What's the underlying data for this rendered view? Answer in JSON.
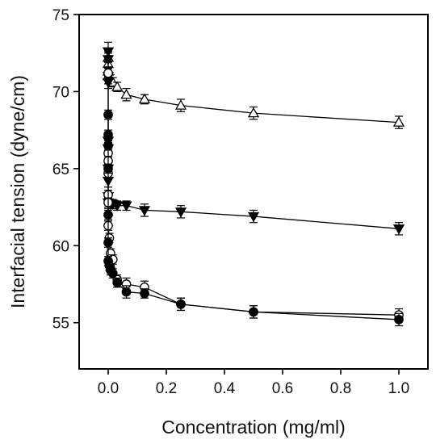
{
  "chart_data": {
    "type": "scatter",
    "title": "",
    "xlabel": "Concentration (mg/ml)",
    "ylabel": "Interfacial tension (dyne/cm)",
    "xlim": [
      -0.1,
      1.1
    ],
    "ylim": [
      52,
      75
    ],
    "x_ticks": [
      0.0,
      0.2,
      0.4,
      0.6,
      0.8,
      1.0
    ],
    "x_tick_labels": [
      "0.0",
      "0.2",
      "0.4",
      "0.6",
      "0.8",
      "1.0"
    ],
    "y_ticks": [
      55,
      60,
      65,
      70,
      75
    ],
    "y_tick_labels": [
      "55",
      "60",
      "65",
      "70",
      "75"
    ],
    "grid": false,
    "legend": "none",
    "series": [
      {
        "marker": "triangle-up-open",
        "color": "#000000",
        "x": [
          0.0,
          0.0,
          0.0,
          0.0,
          0.008,
          0.016,
          0.031,
          0.0625,
          0.125,
          0.25,
          0.5,
          1.0
        ],
        "y": [
          72.2,
          71.8,
          71.3,
          71.0,
          70.8,
          70.6,
          70.3,
          69.8,
          69.5,
          69.1,
          68.6,
          68.0
        ],
        "err": [
          0.3,
          0.3,
          0.3,
          0.3,
          0.3,
          0.3,
          0.3,
          0.4,
          0.3,
          0.4,
          0.4,
          0.4
        ]
      },
      {
        "marker": "triangle-down-filled",
        "color": "#000000",
        "x": [
          0.0,
          0.0,
          0.0,
          0.0,
          0.0,
          0.0,
          0.0,
          0.0,
          0.0,
          0.0,
          0.008,
          0.016,
          0.031,
          0.0625,
          0.125,
          0.25,
          0.5,
          1.0
        ],
        "y": [
          72.6,
          72.1,
          71.0,
          70.6,
          66.8,
          66.3,
          65.0,
          64.2,
          63.2,
          62.8,
          62.7,
          62.7,
          62.6,
          62.6,
          62.3,
          62.2,
          61.9,
          61.1
        ],
        "err": [
          0.6,
          0.5,
          0.5,
          0.4,
          0.4,
          0.4,
          0.4,
          0.4,
          0.4,
          0.4,
          0.3,
          0.3,
          0.3,
          0.3,
          0.4,
          0.4,
          0.4,
          0.4
        ]
      },
      {
        "marker": "circle-open",
        "color": "#000000",
        "x": [
          0.0,
          0.0,
          0.0,
          0.0,
          0.0,
          0.0,
          0.0,
          0.004,
          0.008,
          0.016,
          0.031,
          0.0625,
          0.125,
          0.25,
          0.5,
          1.0
        ],
        "y": [
          71.2,
          66.0,
          65.5,
          64.7,
          63.3,
          62.8,
          61.3,
          60.5,
          59.5,
          59.1,
          57.8,
          57.5,
          57.3,
          56.2,
          55.7,
          55.5
        ],
        "err": [
          0.3,
          0.3,
          0.3,
          0.3,
          0.3,
          0.3,
          0.3,
          0.3,
          0.3,
          0.3,
          0.3,
          0.4,
          0.4,
          0.4,
          0.4,
          0.4
        ]
      },
      {
        "marker": "circle-filled",
        "color": "#000000",
        "x": [
          0.0,
          0.0,
          0.0,
          0.0,
          0.0,
          0.0,
          0.0,
          0.004,
          0.008,
          0.016,
          0.031,
          0.0625,
          0.125,
          0.25,
          0.5,
          1.0
        ],
        "y": [
          68.5,
          67.2,
          66.5,
          65.0,
          62.0,
          60.2,
          59.0,
          58.7,
          58.4,
          58.2,
          57.6,
          57.0,
          56.9,
          56.2,
          55.7,
          55.2
        ],
        "err": [
          0.3,
          0.3,
          0.3,
          0.3,
          0.3,
          0.3,
          0.3,
          0.3,
          0.3,
          0.3,
          0.3,
          0.4,
          0.3,
          0.4,
          0.4,
          0.4
        ]
      }
    ]
  }
}
